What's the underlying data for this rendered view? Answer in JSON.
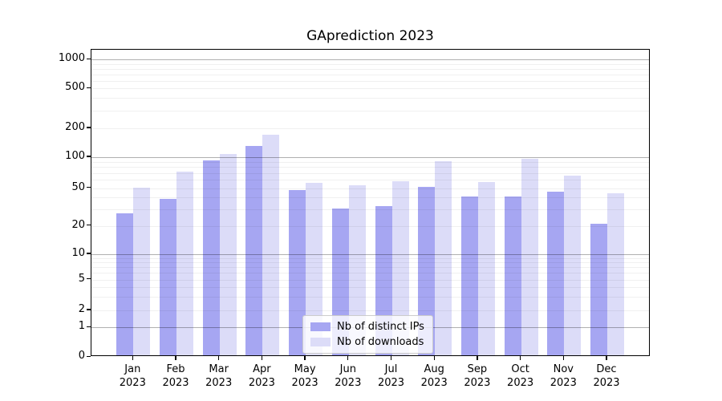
{
  "title": "GAprediction 2023",
  "chart_data": {
    "type": "bar",
    "title": "GAprediction 2023",
    "categories": [
      "Jan 2023",
      "Feb 2023",
      "Mar 2023",
      "Apr 2023",
      "May 2023",
      "Jun 2023",
      "Jul 2023",
      "Aug 2023",
      "Sep 2023",
      "Oct 2023",
      "Nov 2023",
      "Dec 2023"
    ],
    "series": [
      {
        "name": "Nb of distinct IPs",
        "color": "#a6a6f2",
        "values": [
          26,
          37,
          90,
          125,
          46,
          29,
          31,
          49,
          39,
          39,
          44,
          20
        ]
      },
      {
        "name": "Nb of downloads",
        "color": "#dcdcf8",
        "values": [
          48,
          70,
          103,
          165,
          54,
          51,
          56,
          88,
          55,
          92,
          63,
          42
        ]
      }
    ],
    "xlabel": "",
    "ylabel": "",
    "yscale": "symlog",
    "y_tick_values": [
      0,
      1,
      2,
      5,
      10,
      20,
      50,
      100,
      200,
      500,
      1000
    ],
    "ylim": [
      0,
      1250
    ],
    "grid": "horizontal, major decades darker, minor faint, drawn above bars",
    "legend_position": "lower center"
  },
  "legend": {
    "items": [
      {
        "label": "Nb of distinct IPs",
        "color": "#a6a6f2"
      },
      {
        "label": "Nb of downloads",
        "color": "#dcdcf8"
      }
    ]
  },
  "colors": {
    "background": "#ffffff",
    "bar_dark": "#a6a6f2",
    "bar_light": "#dcdcf8",
    "grid_major": "#b0b0b0",
    "grid_minor": "#efefef",
    "axis": "#000000",
    "legend_border": "#cccccc"
  }
}
